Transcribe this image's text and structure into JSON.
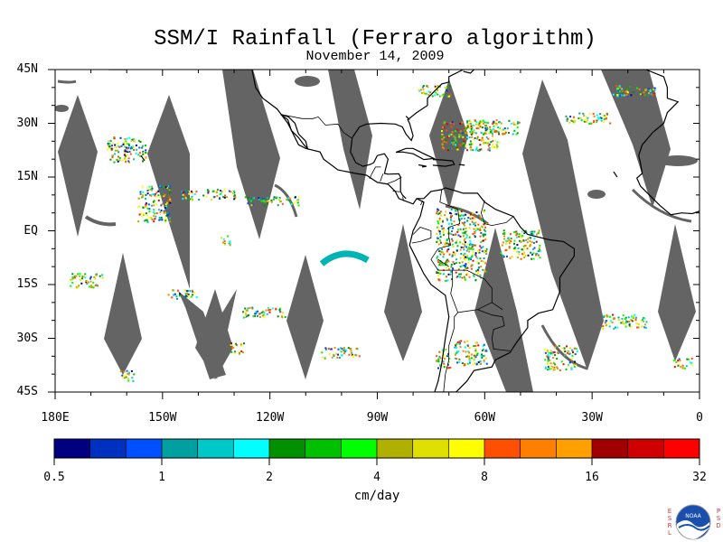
{
  "title": "SSM/I Rainfall (Ferraro algorithm)",
  "subtitle": "November 14, 2009",
  "lat_labels": [
    "45N",
    "30N",
    "15N",
    "EQ",
    "15S",
    "30S",
    "45S"
  ],
  "lat_values": [
    45,
    30,
    15,
    0,
    -15,
    -30,
    -45
  ],
  "lon_labels": [
    "180E",
    "150W",
    "120W",
    "90W",
    "60W",
    "30W",
    "0"
  ],
  "lon_values": [
    -180,
    -150,
    -120,
    -90,
    -60,
    -30,
    0
  ],
  "colorbar": {
    "tick_labels": [
      "0.5",
      "1",
      "2",
      "4",
      "8",
      "16",
      "32"
    ],
    "units": "cm/day",
    "colors": [
      "#000080",
      "#0030c0",
      "#0050ff",
      "#00a0a0",
      "#00c8c8",
      "#00ffff",
      "#009000",
      "#00c000",
      "#00ff00",
      "#b0b000",
      "#e0e000",
      "#ffff00",
      "#ff5000",
      "#ff8000",
      "#ffa000",
      "#a00000",
      "#d00000",
      "#ff0000"
    ]
  },
  "map": {
    "extent": {
      "lon": [
        -180,
        0
      ],
      "lat": [
        -45,
        45
      ]
    },
    "no_data_color": "#646464",
    "coast_color": "#000000"
  },
  "logo": {
    "left_letters": [
      "E",
      "S",
      "R",
      "L"
    ],
    "right_letters": [
      "P",
      "S",
      "D"
    ],
    "text": "NOAA"
  }
}
